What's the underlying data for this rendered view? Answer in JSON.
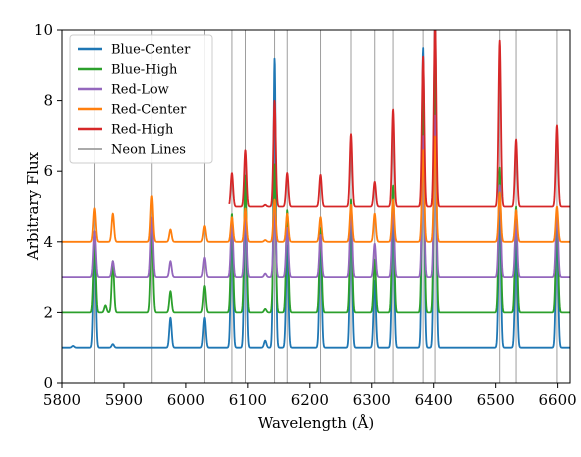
{
  "chart_data": {
    "type": "line",
    "title": "",
    "xlabel": "Wavelength (Å)",
    "ylabel": "Arbitrary Flux",
    "xlim": [
      5800,
      6620
    ],
    "ylim": [
      0,
      10
    ],
    "x_ticks": [
      5800,
      5900,
      6000,
      6100,
      6200,
      6300,
      6400,
      6500,
      6600
    ],
    "y_ticks": [
      0,
      2,
      4,
      6,
      8,
      10
    ],
    "legend_position": "top-left",
    "grid": false,
    "neon_lines": {
      "name": "Neon Lines",
      "color": "#9e9e9e",
      "wavelengths": [
        5852.5,
        5944.8,
        6030.0,
        6074.3,
        6096.2,
        6143.1,
        6163.6,
        6217.3,
        6266.5,
        6304.8,
        6334.4,
        6382.9,
        6402.2,
        6506.5,
        6532.9,
        6598.9
      ]
    },
    "series": [
      {
        "name": "Blue-Center",
        "color": "#1f77b4",
        "baseline": 1.0,
        "start_x": 5800,
        "peaks": [
          [
            5818,
            0.05
          ],
          [
            5852.5,
            3.0
          ],
          [
            5882,
            0.1
          ],
          [
            5975,
            0.85
          ],
          [
            6030,
            0.85
          ],
          [
            6074.3,
            3.6
          ],
          [
            6096.2,
            4.5
          ],
          [
            6128,
            0.2
          ],
          [
            6143.1,
            8.2
          ],
          [
            6163.6,
            2.9
          ],
          [
            6217.3,
            3.3
          ],
          [
            6266.5,
            4.0
          ],
          [
            6304.8,
            1.9
          ],
          [
            6334.4,
            4.1
          ],
          [
            6382.9,
            8.5
          ],
          [
            6402.2,
            9.5
          ],
          [
            6506.5,
            4.3
          ],
          [
            6532.9,
            3.0
          ],
          [
            6598.9,
            3.4
          ]
        ]
      },
      {
        "name": "Blue-High",
        "color": "#2ca02c",
        "baseline": 2.0,
        "start_x": 5800,
        "peaks": [
          [
            5852.5,
            2.0
          ],
          [
            5870,
            0.2
          ],
          [
            5882,
            1.45
          ],
          [
            5944.8,
            2.3
          ],
          [
            5975,
            0.6
          ],
          [
            6030,
            0.75
          ],
          [
            6074.3,
            2.8
          ],
          [
            6096.2,
            3.9
          ],
          [
            6128,
            0.1
          ],
          [
            6143.1,
            4.2
          ],
          [
            6163.6,
            2.9
          ],
          [
            6217.3,
            2.4
          ],
          [
            6266.5,
            3.2
          ],
          [
            6304.8,
            1.5
          ],
          [
            6334.4,
            3.6
          ],
          [
            6382.9,
            7.0
          ],
          [
            6402.2,
            8.0
          ],
          [
            6506.5,
            4.1
          ],
          [
            6532.9,
            3.0
          ],
          [
            6598.9,
            2.9
          ]
        ]
      },
      {
        "name": "Red-Low",
        "color": "#9467bd",
        "baseline": 3.0,
        "start_x": 5800,
        "peaks": [
          [
            5852.5,
            1.3
          ],
          [
            5882,
            0.45
          ],
          [
            5944.8,
            1.7
          ],
          [
            5975,
            0.45
          ],
          [
            6030,
            0.55
          ],
          [
            6074.3,
            1.6
          ],
          [
            6096.2,
            1.8
          ],
          [
            6128,
            0.1
          ],
          [
            6143.1,
            2.0
          ],
          [
            6163.6,
            1.4
          ],
          [
            6217.3,
            1.2
          ],
          [
            6266.5,
            2.0
          ],
          [
            6304.8,
            0.95
          ],
          [
            6334.4,
            2.1
          ],
          [
            6382.9,
            4.0
          ],
          [
            6402.2,
            4.6
          ],
          [
            6506.5,
            2.6
          ],
          [
            6532.9,
            1.6
          ],
          [
            6598.9,
            1.9
          ]
        ]
      },
      {
        "name": "Red-Center",
        "color": "#ff7f0e",
        "baseline": 4.0,
        "start_x": 5800,
        "peaks": [
          [
            5852.5,
            0.95
          ],
          [
            5882,
            0.8
          ],
          [
            5944.8,
            1.3
          ],
          [
            5975,
            0.35
          ],
          [
            6030,
            0.45
          ],
          [
            6074.3,
            0.7
          ],
          [
            6096.2,
            0.95
          ],
          [
            6128,
            0.05
          ],
          [
            6143.1,
            1.2
          ],
          [
            6163.6,
            0.8
          ],
          [
            6217.3,
            0.7
          ],
          [
            6266.5,
            1.05
          ],
          [
            6304.8,
            0.8
          ],
          [
            6334.4,
            1.2
          ],
          [
            6382.9,
            2.6
          ],
          [
            6402.2,
            3.0
          ],
          [
            6506.5,
            1.4
          ],
          [
            6532.9,
            0.9
          ],
          [
            6598.9,
            1.0
          ]
        ]
      },
      {
        "name": "Red-High",
        "color": "#d62728",
        "baseline": 5.0,
        "start_x": 6070,
        "peaks": [
          [
            6074.3,
            0.95
          ],
          [
            6096.2,
            1.6
          ],
          [
            6128,
            0.05
          ],
          [
            6143.1,
            3.0
          ],
          [
            6163.6,
            0.95
          ],
          [
            6217.3,
            0.9
          ],
          [
            6266.5,
            2.05
          ],
          [
            6304.8,
            0.7
          ],
          [
            6334.4,
            2.75
          ],
          [
            6382.9,
            4.25
          ],
          [
            6402.2,
            5.3
          ],
          [
            6506.5,
            4.7
          ],
          [
            6532.9,
            1.9
          ],
          [
            6598.9,
            2.3
          ]
        ]
      }
    ]
  }
}
